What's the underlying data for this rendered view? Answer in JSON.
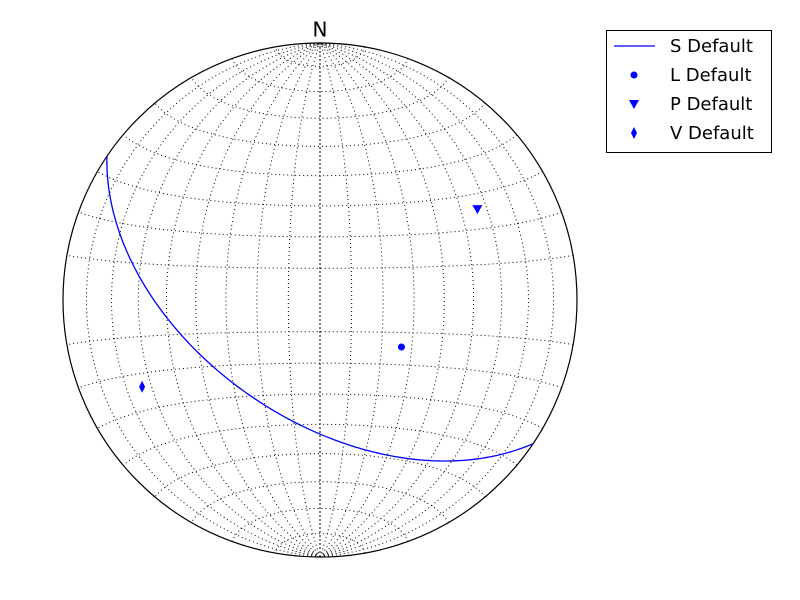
{
  "chart_data": {
    "type": "stereonet",
    "projection": "equal-area",
    "north_label": "N",
    "grid": true,
    "legend": "upper right",
    "series": [
      {
        "name": "S Default",
        "kind": "plane",
        "color": "#0000ff",
        "strike": [
          124
        ],
        "dip": [
          52
        ]
      },
      {
        "name": "L Default",
        "kind": "line",
        "marker": "circle",
        "color": "#0000ff",
        "bearing": [
          120
        ],
        "plunge": [
          60
        ]
      },
      {
        "name": "P Default",
        "kind": "line",
        "marker": "triangle-down",
        "color": "#0000ff",
        "bearing": [
          60
        ],
        "plunge": [
          30
        ]
      },
      {
        "name": "V Default",
        "kind": "line",
        "marker": "thin-diamond",
        "color": "#0000ff",
        "bearing": [
          244
        ],
        "plunge": [
          24
        ]
      }
    ]
  }
}
